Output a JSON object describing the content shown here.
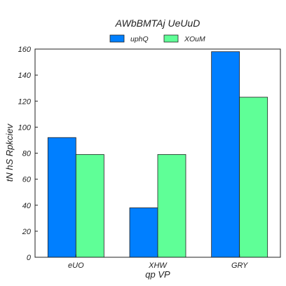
{
  "chart_data": {
    "type": "bar",
    "title": "AWbBMTAj UeUuD",
    "xlabel": "qp  VP",
    "ylabel": "tN hS Rpkciev",
    "categories": [
      "eUO",
      "XHW",
      "GRY"
    ],
    "series": [
      {
        "name": "uphQ",
        "values": [
          92,
          38,
          158
        ],
        "color": "#007fff"
      },
      {
        "name": "XOuM",
        "values": [
          79,
          79,
          123
        ],
        "color": "#5fff97"
      }
    ],
    "ylim": [
      0,
      160
    ],
    "yticks": [
      0,
      20,
      40,
      60,
      80,
      100,
      120,
      140,
      160
    ],
    "grid": false,
    "legend_position": "top-center"
  }
}
